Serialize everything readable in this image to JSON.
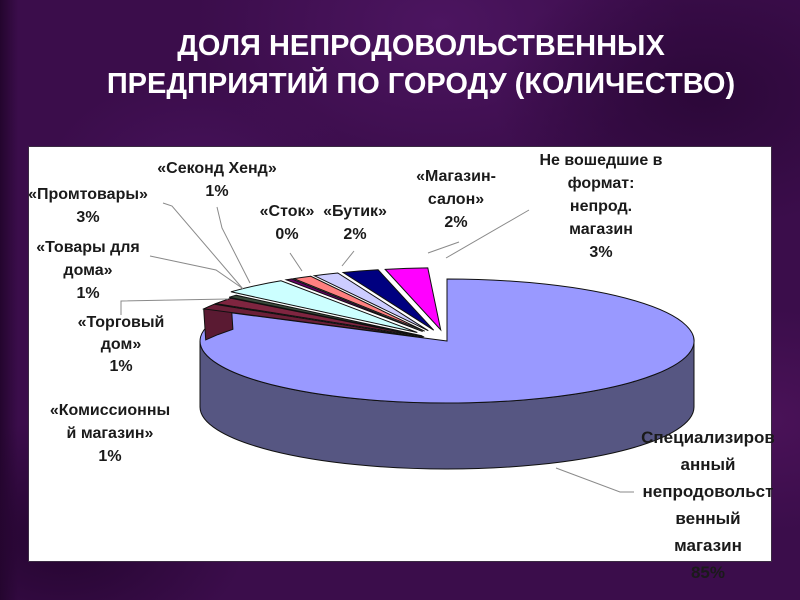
{
  "title": {
    "line1": "ДОЛЯ НЕПРОДОВОЛЬСТВЕННЫХ",
    "line2": "ПРЕДПРИЯТИЙ ПО ГОРОДУ (КОЛИЧЕСТВО)"
  },
  "colors": {
    "background": "#3B0D4B",
    "panel": "#FFFFFF",
    "title_text": "#FFFFFF",
    "label_text": "#1A1A1A",
    "callout_line": "#8A8A8A",
    "pie_outline": "#101010",
    "pie_side": "#565682",
    "tail_side": "#5A1A32"
  },
  "chart_data": {
    "type": "pie",
    "title": "ДОЛЯ НЕПРОДОВОЛЬСТВЕННЫХ ПРЕДПРИЯТИЙ ПО ГОРОДУ (КОЛИЧЕСТВО)",
    "unit": "%",
    "style": "3d-exploded-pie",
    "legend": false,
    "slices": [
      {
        "id": "specialized",
        "name": "Специализированный непродовольственный магазин",
        "value": 85,
        "pct_text": "85%",
        "color": "#9999FF",
        "label_lines": [
          "Специализиров",
          "анный",
          "непродовольст",
          "венный",
          "магазин",
          "85%"
        ]
      },
      {
        "id": "ne_voshedshie",
        "name": "Не вошедшие в формат: непрод. магазин",
        "value": 3,
        "pct_text": "3%",
        "color": "#FFFFFF",
        "label_lines": [
          "Не вошедшие в",
          "формат:",
          "непрод.",
          "магазин",
          "3%"
        ]
      },
      {
        "id": "magazin_salon",
        "name": "«Магазин-салон»",
        "value": 2,
        "pct_text": "2%",
        "color": "#FF00FF",
        "label_lines": [
          "«Магазин-",
          "салон»",
          "2%"
        ]
      },
      {
        "id": "butik",
        "name": "«Бутик»",
        "value": 2,
        "pct_text": "2%",
        "color": "#000080",
        "label_lines": [
          "«Бутик»",
          "2%"
        ]
      },
      {
        "id": "sekond_hend",
        "name": "«Секонд Хенд»",
        "value": 1,
        "pct_text": "1%",
        "color": "#CCCCFF",
        "label_lines": [
          "«Секонд Хенд»",
          "1%"
        ]
      },
      {
        "id": "stok",
        "name": "«Сток»",
        "value": 0,
        "pct_text": "0%",
        "color": "#FF8080",
        "label_lines": [
          "«Сток»",
          "0%"
        ]
      },
      {
        "id": "promtovary",
        "name": "«Промтовары»",
        "value": 3,
        "pct_text": "3%",
        "color": "#CCFFFF",
        "label_lines": [
          "«Промтовары»",
          "3%"
        ]
      },
      {
        "id": "tovary_dlya_doma",
        "name": "«Товары для дома»",
        "value": 1,
        "pct_text": "1%",
        "color": "#3A4A3A",
        "label_lines": [
          "«Товары для",
          "дома»",
          "1%"
        ]
      },
      {
        "id": "torgovy_dom",
        "name": "«Торговый дом»",
        "value": 1,
        "pct_text": "1%",
        "color": "#7F2540",
        "label_lines": [
          "«Торговый",
          "дом»",
          "1%"
        ]
      },
      {
        "id": "komissionny",
        "name": "«Комиссионный магазин»",
        "value": 1,
        "pct_text": "1%",
        "color": "#6B1F38",
        "label_lines": [
          "«Комиссионны",
          "й магазин»",
          "1%"
        ]
      }
    ]
  }
}
